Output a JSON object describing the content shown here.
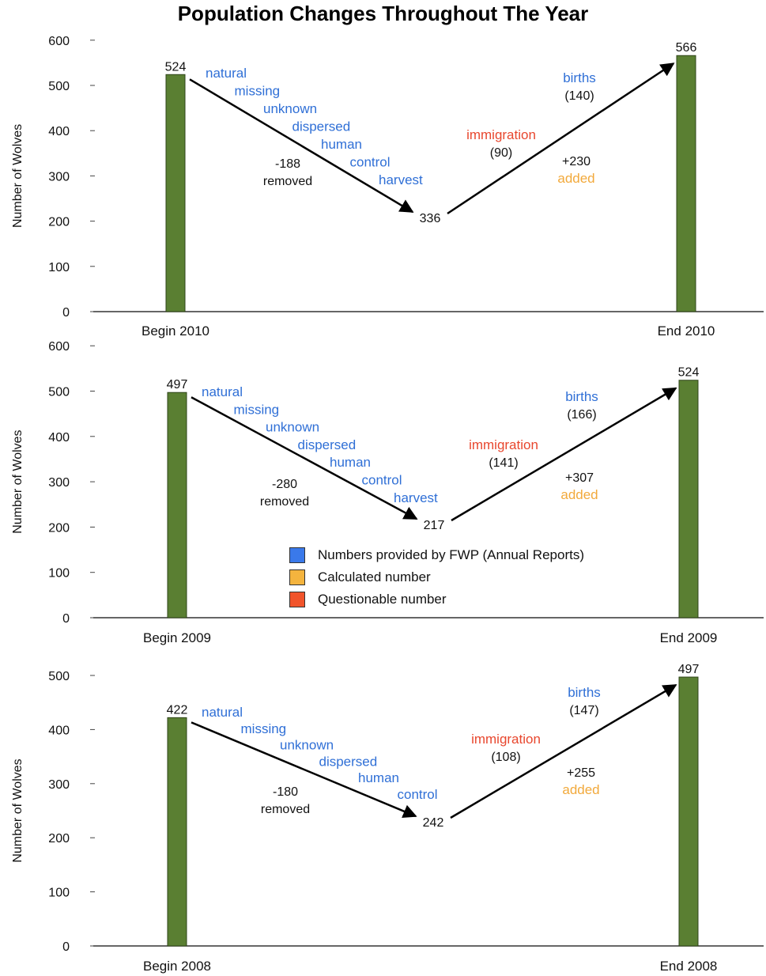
{
  "title": "Population Changes Throughout The Year",
  "colors": {
    "fwp": "#2f6fd6",
    "calculated": "#f2a93b",
    "questionable": "#e8472e",
    "bar": "#5a7f32",
    "text": "#111111"
  },
  "legend": [
    {
      "label": "Numbers provided by FWP (Annual Reports)",
      "color": "#3a79ea"
    },
    {
      "label": "Calculated number",
      "color": "#f4b43e"
    },
    {
      "label": "Questionable number",
      "color": "#f1542b"
    }
  ],
  "chart_data": [
    {
      "type": "bar",
      "ylabel": "Number of Wolves",
      "ylim": [
        0,
        600
      ],
      "yticks": [
        "0",
        "100",
        "200",
        "300",
        "400",
        "500",
        "600"
      ],
      "categories": [
        "Begin 2010",
        "End 2010"
      ],
      "values": [
        524,
        566
      ],
      "mid_value": 336,
      "removed": {
        "value": "-188",
        "label": "removed"
      },
      "added": {
        "value": "+230",
        "label": "added"
      },
      "removal_causes": [
        "natural",
        "missing",
        "unknown",
        "dispersed",
        "human",
        "control",
        "harvest"
      ],
      "immigration": {
        "label": "immigration",
        "value": "(90)"
      },
      "births": {
        "label": "births",
        "value": "(140)"
      }
    },
    {
      "type": "bar",
      "ylabel": "Number of Wolves",
      "ylim": [
        0,
        600
      ],
      "yticks": [
        "0",
        "100",
        "200",
        "300",
        "400",
        "500",
        "600"
      ],
      "categories": [
        "Begin 2009",
        "End 2009"
      ],
      "values": [
        497,
        524
      ],
      "mid_value": 217,
      "removed": {
        "value": "-280",
        "label": "removed"
      },
      "added": {
        "value": "+307",
        "label": "added"
      },
      "removal_causes": [
        "natural",
        "missing",
        "unknown",
        "dispersed",
        "human",
        "control",
        "harvest"
      ],
      "immigration": {
        "label": "immigration",
        "value": "(141)"
      },
      "births": {
        "label": "births",
        "value": "(166)"
      }
    },
    {
      "type": "bar",
      "ylabel": "Number of Wolves",
      "ylim": [
        0,
        500
      ],
      "yticks": [
        "0",
        "100",
        "200",
        "300",
        "400",
        "500"
      ],
      "categories": [
        "Begin 2008",
        "End 2008"
      ],
      "values": [
        422,
        497
      ],
      "mid_value": 242,
      "removed": {
        "value": "-180",
        "label": "removed"
      },
      "added": {
        "value": "+255",
        "label": "added"
      },
      "removal_causes": [
        "natural",
        "missing",
        "unknown",
        "dispersed",
        "human",
        "control"
      ],
      "immigration": {
        "label": "immigration",
        "value": "(108)"
      },
      "births": {
        "label": "births",
        "value": "(147)"
      }
    }
  ]
}
